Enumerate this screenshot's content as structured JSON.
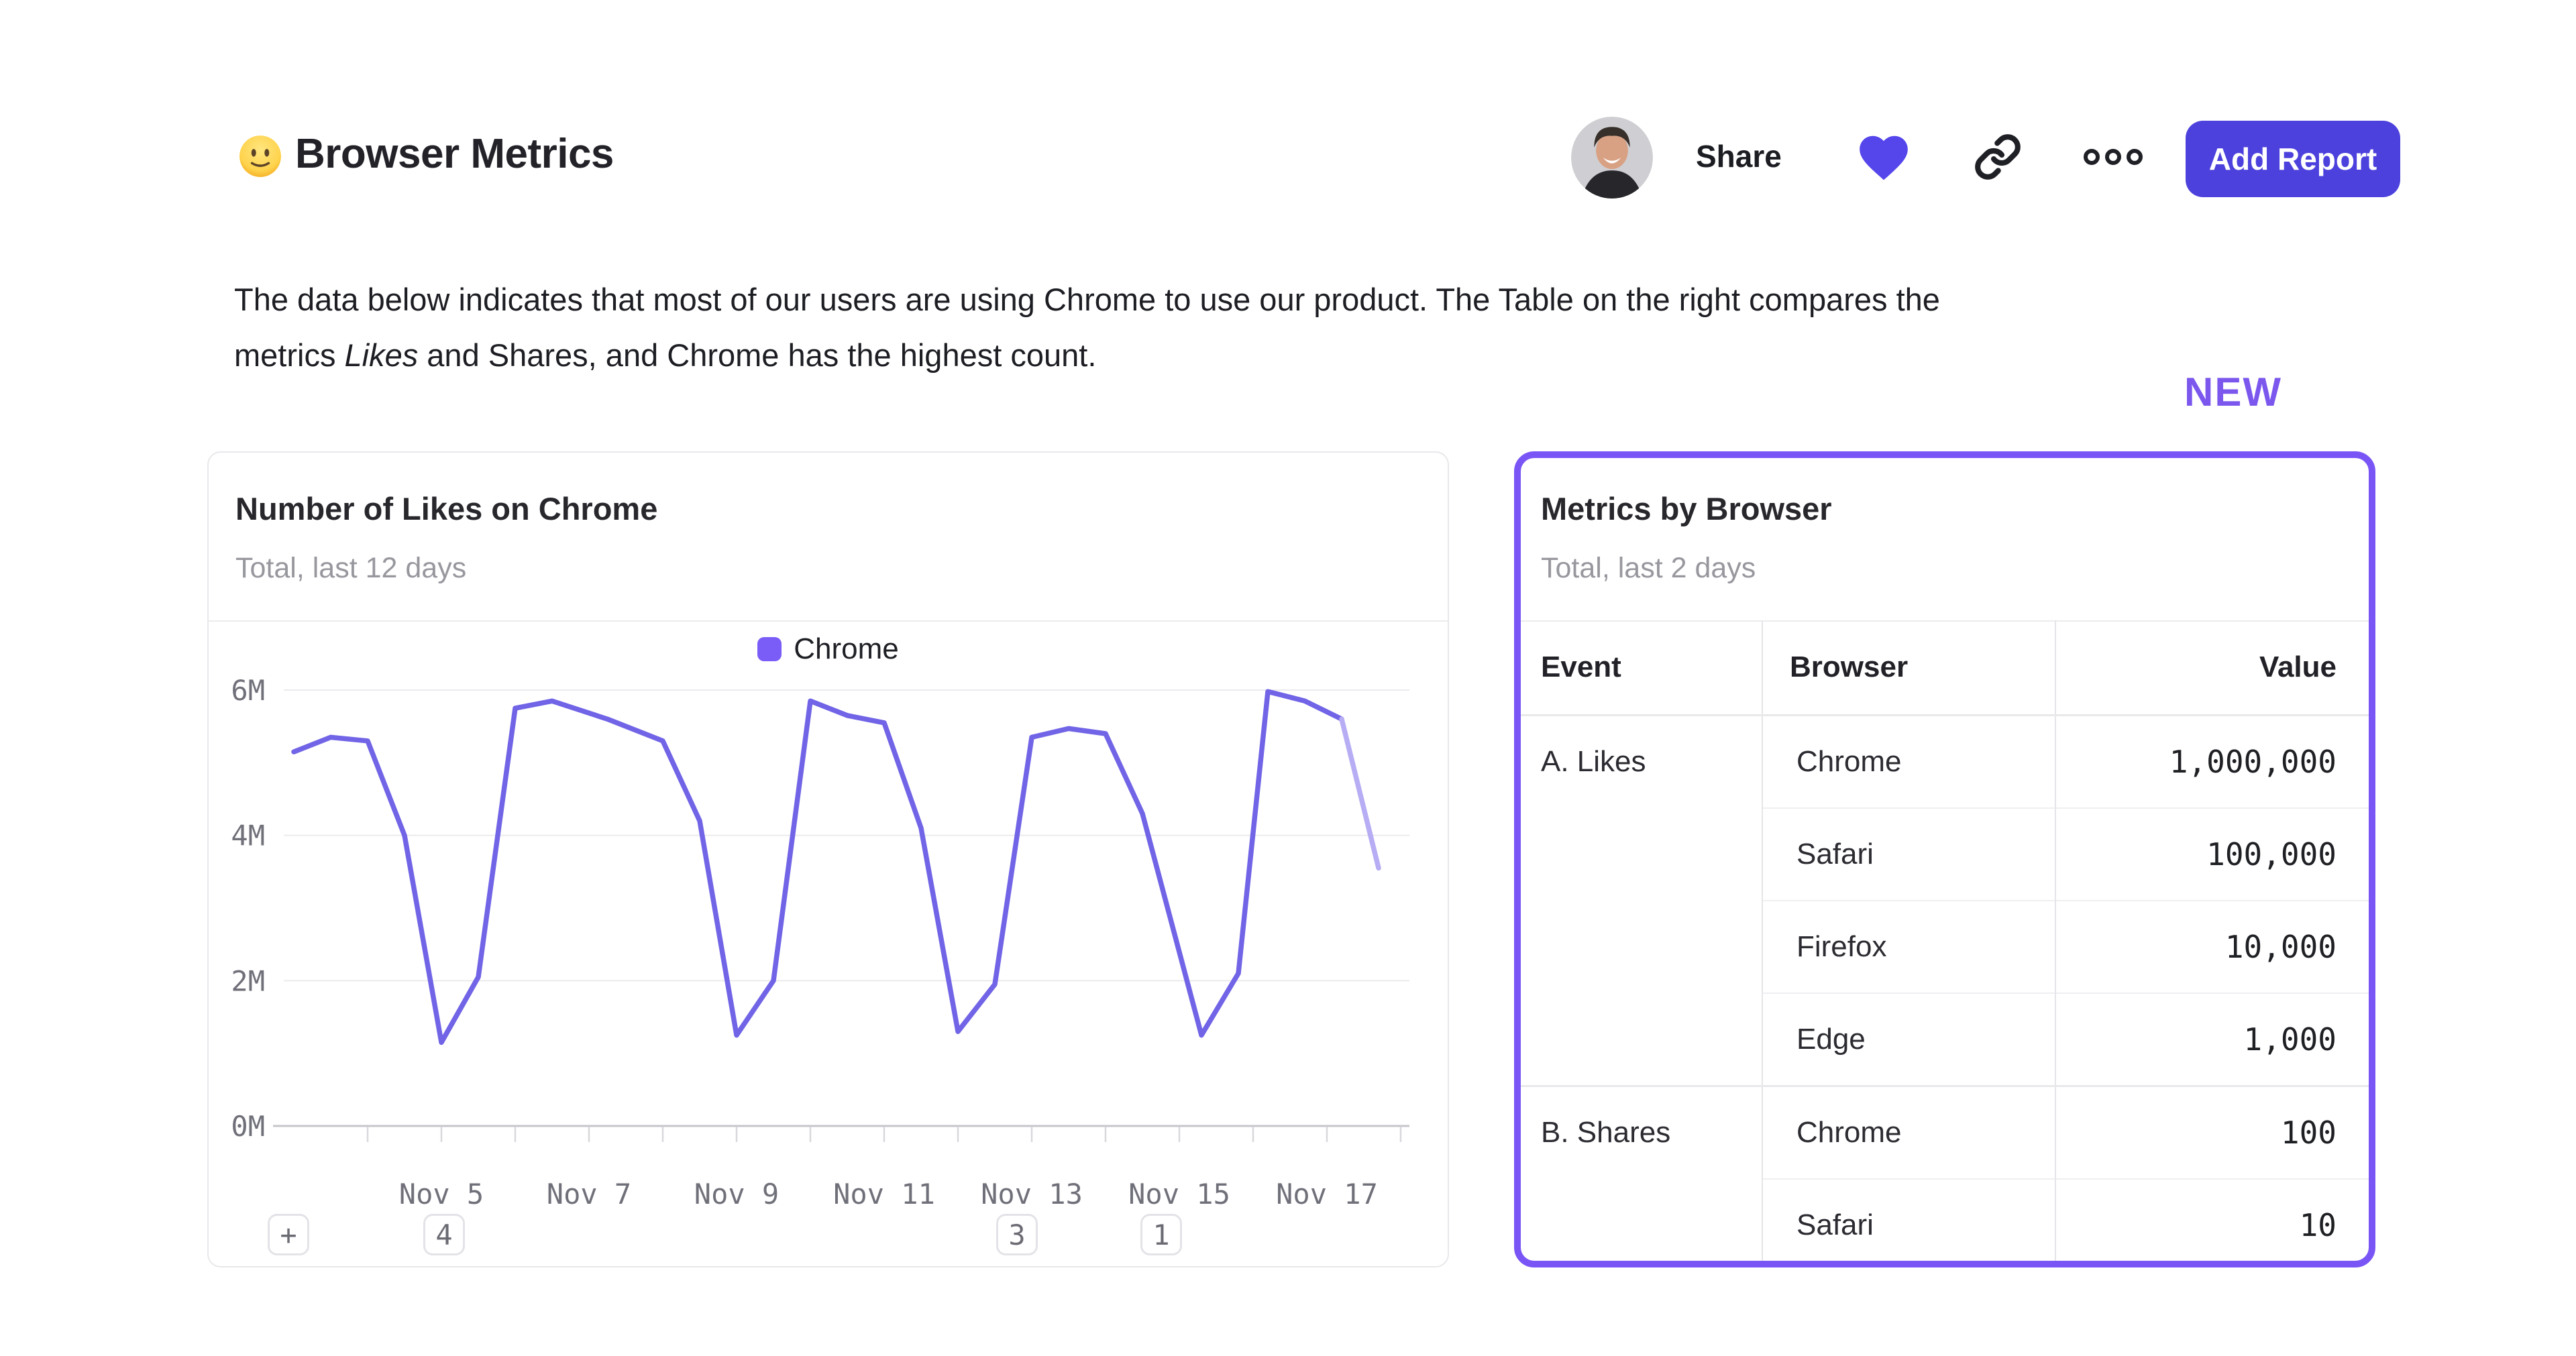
{
  "header": {
    "title": "Browser Metrics",
    "emoji_icon": "slightly-smiling-face",
    "share_label": "Share",
    "add_report_label": "Add Report"
  },
  "description": {
    "segments": [
      {
        "text": "The data below indicates that most of our users are using Chrome to use our product. The Table on the right compares the",
        "italic": false,
        "break_after": true
      },
      {
        "text": "metrics ",
        "italic": false
      },
      {
        "text": "Likes",
        "italic": true
      },
      {
        "text": " and Shares, and Chrome has the highest count.",
        "italic": false
      }
    ]
  },
  "new_badge": {
    "label": "NEW",
    "color": "#7b57ee"
  },
  "chart_card": {
    "title": "Number of Likes on Chrome",
    "subtitle": "Total, last 12 days",
    "legend": [
      {
        "label": "Chrome",
        "color": "#7a5cf7"
      }
    ],
    "annotation_chips": [
      {
        "label": "+",
        "day": null
      },
      {
        "label": "4",
        "day": 2.04
      },
      {
        "label": "3",
        "day": 9.8
      },
      {
        "label": "1",
        "day": 11.75
      }
    ]
  },
  "chart_data": {
    "type": "line",
    "title": "Number of Likes on Chrome",
    "subtitle": "Total, last 12 days",
    "unit": "millions of likes",
    "grid": "horizontal",
    "legend_position": "top-center",
    "day0_date": "Nov 3",
    "ylim_m": [
      0,
      6.45
    ],
    "y_gridlines_m": [
      6,
      4,
      2,
      0
    ],
    "y_tick_labels": [
      "6M",
      "4M",
      "2M",
      "0M"
    ],
    "x_tick_days": [
      1,
      2,
      3,
      4,
      5,
      6,
      7,
      8,
      9,
      10,
      11,
      12,
      13,
      14,
      15
    ],
    "x_tick_labels": {
      "2": "Nov 5",
      "4": "Nov 7",
      "6": "Nov 9",
      "8": "Nov 11",
      "10": "Nov 13",
      "12": "Nov 15",
      "14": "Nov 17"
    },
    "series": [
      {
        "name": "Chrome",
        "color": "#7164e6",
        "faded_tail_color": "#b6adf4",
        "faded_tail_segments": 1,
        "points_day_valueM": [
          [
            0,
            5.15
          ],
          [
            0.5,
            5.35
          ],
          [
            1,
            5.3
          ],
          [
            1.5,
            4.0
          ],
          [
            2,
            1.15
          ],
          [
            2.5,
            2.05
          ],
          [
            3,
            5.75
          ],
          [
            3.5,
            5.85
          ],
          [
            4.25,
            5.6
          ],
          [
            5,
            5.3
          ],
          [
            5.5,
            4.2
          ],
          [
            6,
            1.25
          ],
          [
            6.5,
            2.0
          ],
          [
            7,
            5.85
          ],
          [
            7.5,
            5.65
          ],
          [
            8,
            5.55
          ],
          [
            8.5,
            4.1
          ],
          [
            9,
            1.3
          ],
          [
            9.5,
            1.95
          ],
          [
            10,
            5.35
          ],
          [
            10.5,
            5.47
          ],
          [
            11,
            5.4
          ],
          [
            11.5,
            4.3
          ],
          [
            12.3,
            1.25
          ],
          [
            12.8,
            2.1
          ],
          [
            13.2,
            5.98
          ],
          [
            13.7,
            5.85
          ],
          [
            14.2,
            5.6
          ],
          [
            14.7,
            3.55
          ]
        ]
      }
    ]
  },
  "table_card": {
    "title": "Metrics by Browser",
    "subtitle": "Total, last 2 days",
    "columns": [
      "Event",
      "Browser",
      "Value"
    ],
    "groups": [
      {
        "event": "A. Likes",
        "rows": [
          {
            "browser": "Chrome",
            "value": "1,000,000"
          },
          {
            "browser": "Safari",
            "value": "100,000"
          },
          {
            "browser": "Firefox",
            "value": "10,000"
          },
          {
            "browser": "Edge",
            "value": "1,000"
          }
        ]
      },
      {
        "event": "B. Shares",
        "rows": [
          {
            "browser": "Chrome",
            "value": "100"
          },
          {
            "browser": "Safari",
            "value": "10"
          }
        ]
      }
    ]
  },
  "colors": {
    "accent_button": "#4c41dc",
    "heart": "#5546ec",
    "icon_dark": "#1f2026",
    "chart_line": "#7164e6",
    "chart_line_faded": "#b6adf4",
    "card_border_highlight": "#7a55f6",
    "new_badge": "#7b57ee",
    "grid_line": "#ebebee",
    "axis_line": "#c6c6cb",
    "axis_text": "#70707a"
  }
}
